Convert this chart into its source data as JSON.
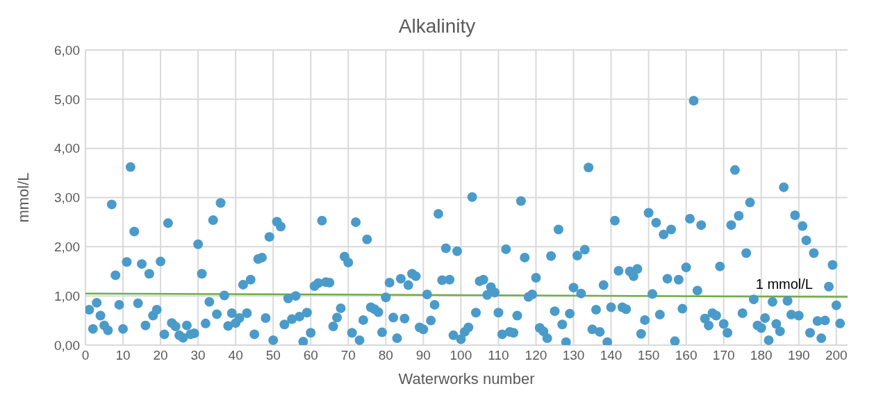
{
  "chart_data": {
    "type": "scatter",
    "title": "Alkalinity",
    "xlabel": "Waterworks number",
    "ylabel": "mmol/L",
    "xlim": [
      0,
      203
    ],
    "xticks": [
      0,
      10,
      20,
      30,
      40,
      50,
      60,
      70,
      80,
      90,
      100,
      110,
      120,
      130,
      140,
      150,
      160,
      170,
      180,
      190,
      200
    ],
    "ylim": [
      0,
      6
    ],
    "yticks": [
      {
        "value": 0,
        "label": "0,00"
      },
      {
        "value": 1,
        "label": "1,00"
      },
      {
        "value": 2,
        "label": "2,00"
      },
      {
        "value": 3,
        "label": "3,00"
      },
      {
        "value": 4,
        "label": "4,00"
      },
      {
        "value": 5,
        "label": "5,00"
      },
      {
        "value": 6,
        "label": "6,00"
      }
    ],
    "grid": true,
    "legend": false,
    "marker": "circle",
    "series": [
      {
        "color": "#4a9bca",
        "x": [
          1,
          2,
          3,
          4,
          5,
          6,
          7,
          8,
          9,
          10,
          11,
          12,
          13,
          14,
          15,
          16,
          17,
          18,
          19,
          20,
          21,
          22,
          23,
          24,
          25,
          26,
          27,
          28,
          29,
          30,
          31,
          32,
          33,
          34,
          35,
          36,
          37,
          38,
          39,
          40,
          41,
          42,
          43,
          44,
          45,
          46,
          47,
          48,
          49,
          50,
          51,
          52,
          53,
          54,
          55,
          56,
          57,
          58,
          59,
          60,
          61,
          62,
          63,
          64,
          65,
          66,
          67,
          68,
          69,
          70,
          71,
          72,
          73,
          74,
          75,
          76,
          77,
          78,
          79,
          80,
          81,
          82,
          83,
          84,
          85,
          86,
          87,
          88,
          89,
          90,
          91,
          92,
          93,
          94,
          95,
          96,
          97,
          98,
          99,
          100,
          101,
          102,
          103,
          104,
          105,
          106,
          107,
          108,
          109,
          110,
          111,
          112,
          113,
          114,
          115,
          116,
          117,
          118,
          119,
          120,
          121,
          122,
          123,
          124,
          125,
          126,
          127,
          128,
          129,
          130,
          131,
          132,
          133,
          134,
          135,
          136,
          137,
          138,
          139,
          140,
          141,
          142,
          143,
          144,
          145,
          146,
          147,
          148,
          149,
          150,
          151,
          152,
          153,
          154,
          155,
          156,
          157,
          158,
          159,
          160,
          161,
          162,
          163,
          164,
          165,
          166,
          167,
          168,
          169,
          170,
          171,
          172,
          173,
          174,
          175,
          176,
          177,
          178,
          179,
          180,
          181,
          182,
          183,
          184,
          185,
          186,
          187,
          188,
          189,
          190,
          191,
          192,
          193,
          194,
          195,
          196,
          197,
          198,
          199,
          200,
          201
        ],
        "values": [
          0.72,
          0.33,
          0.86,
          0.6,
          0.4,
          0.3,
          2.86,
          1.42,
          0.82,
          0.33,
          1.69,
          3.62,
          2.31,
          0.85,
          1.65,
          0.4,
          1.45,
          0.6,
          0.72,
          1.7,
          0.22,
          2.48,
          0.45,
          0.38,
          0.2,
          0.15,
          0.4,
          0.22,
          0.24,
          2.05,
          1.45,
          0.44,
          0.88,
          2.54,
          0.63,
          2.89,
          1.01,
          0.39,
          0.65,
          0.45,
          0.55,
          1.23,
          0.65,
          1.33,
          0.22,
          1.75,
          1.78,
          0.55,
          2.2,
          0.1,
          2.51,
          2.41,
          0.42,
          0.95,
          0.53,
          1.0,
          0.58,
          0.07,
          0.66,
          0.25,
          1.2,
          1.26,
          2.53,
          1.28,
          1.27,
          0.38,
          0.56,
          0.75,
          1.8,
          1.68,
          0.25,
          2.5,
          0.1,
          0.51,
          2.15,
          0.77,
          0.73,
          0.67,
          0.26,
          0.97,
          1.27,
          0.56,
          0.14,
          1.35,
          0.54,
          1.22,
          1.45,
          1.4,
          0.36,
          0.32,
          1.03,
          0.5,
          0.82,
          2.67,
          1.32,
          1.97,
          1.33,
          0.2,
          1.91,
          0.12,
          0.27,
          0.36,
          3.01,
          0.66,
          1.3,
          1.33,
          1.02,
          1.18,
          1.07,
          0.66,
          0.22,
          1.95,
          0.27,
          0.25,
          0.6,
          2.93,
          1.78,
          0.98,
          1.03,
          1.37,
          0.35,
          0.28,
          0.14,
          1.81,
          0.69,
          2.35,
          0.42,
          0.06,
          0.64,
          1.17,
          1.82,
          1.05,
          1.94,
          3.61,
          0.32,
          0.72,
          0.27,
          1.22,
          0.06,
          0.77,
          2.53,
          1.51,
          0.77,
          0.73,
          1.5,
          1.4,
          1.55,
          0.23,
          0.51,
          2.69,
          1.04,
          2.49,
          0.62,
          2.25,
          1.35,
          2.35,
          0.08,
          1.33,
          0.74,
          1.58,
          2.57,
          4.97,
          1.11,
          2.44,
          0.54,
          0.4,
          0.65,
          0.6,
          1.6,
          0.43,
          0.25,
          2.44,
          3.56,
          2.63,
          0.65,
          1.87,
          2.9,
          0.93,
          0.4,
          0.35,
          0.55,
          0.1,
          0.88,
          0.43,
          0.28,
          3.21,
          0.9,
          0.62,
          2.64,
          0.6,
          2.42,
          2.13,
          0.25,
          1.87,
          0.49,
          0.14,
          0.5,
          1.19,
          1.63,
          0.81,
          0.44
        ]
      },
      {
        "type": "line",
        "name": "1 mmol/L",
        "color": "#70ad47",
        "marker": "none",
        "line_style": "solid",
        "x": [
          0,
          203
        ],
        "values": [
          1.05,
          0.98
        ]
      }
    ]
  }
}
